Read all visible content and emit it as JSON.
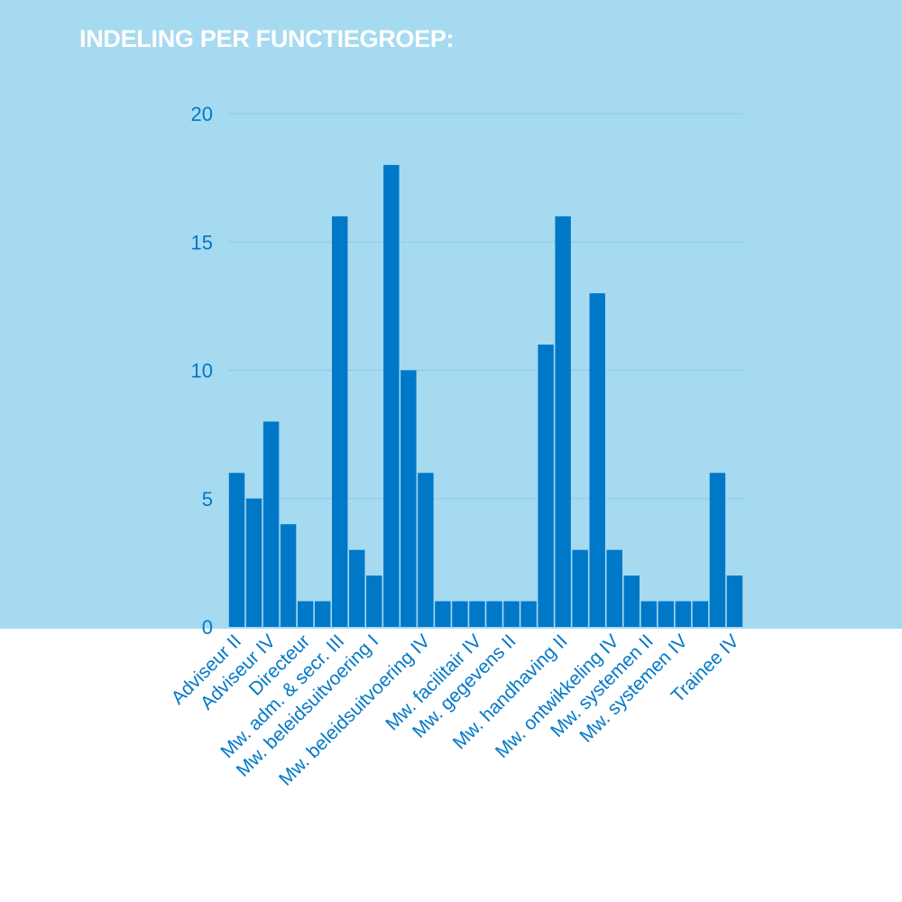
{
  "title": "INDELING PER FUNCTIEGROEP:",
  "colors": {
    "panel": "#a6daf0",
    "bar": "#0078c8",
    "grid": "#8ec8e8",
    "text": "#0078c8",
    "title": "#ffffff"
  },
  "chart_data": {
    "type": "bar",
    "title": "INDELING PER FUNCTIEGROEP:",
    "xlabel": "",
    "ylabel": "",
    "ylim": [
      0,
      20
    ],
    "yticks": [
      0,
      5,
      10,
      15,
      20
    ],
    "grid": true,
    "legend": "none",
    "values": [
      6,
      5,
      8,
      4,
      1,
      1,
      16,
      3,
      2,
      18,
      10,
      6,
      1,
      1,
      1,
      1,
      1,
      1,
      11,
      16,
      3,
      13,
      3,
      2,
      1,
      1,
      1,
      1,
      6,
      2
    ],
    "tick_labels": [
      {
        "index": 0,
        "text": "Adviseur II"
      },
      {
        "index": 2,
        "text": "Adviseur IV"
      },
      {
        "index": 4,
        "text": "Directeur"
      },
      {
        "index": 6,
        "text": "Mw. adm. & secr. III"
      },
      {
        "index": 8,
        "text": "Mw. beleidsuitvoering I"
      },
      {
        "index": 11,
        "text": "Mw. beleidsuitvoering IV"
      },
      {
        "index": 14,
        "text": "Mw. facilitair IV"
      },
      {
        "index": 16,
        "text": "Mw. gegevens II"
      },
      {
        "index": 19,
        "text": "Mw. handhaving II"
      },
      {
        "index": 22,
        "text": "Mw. ontwikkeling IV"
      },
      {
        "index": 24,
        "text": "Mw. systemen II"
      },
      {
        "index": 26,
        "text": "Mw. systemen IV"
      },
      {
        "index": 29,
        "text": "Trainee IV"
      }
    ]
  }
}
